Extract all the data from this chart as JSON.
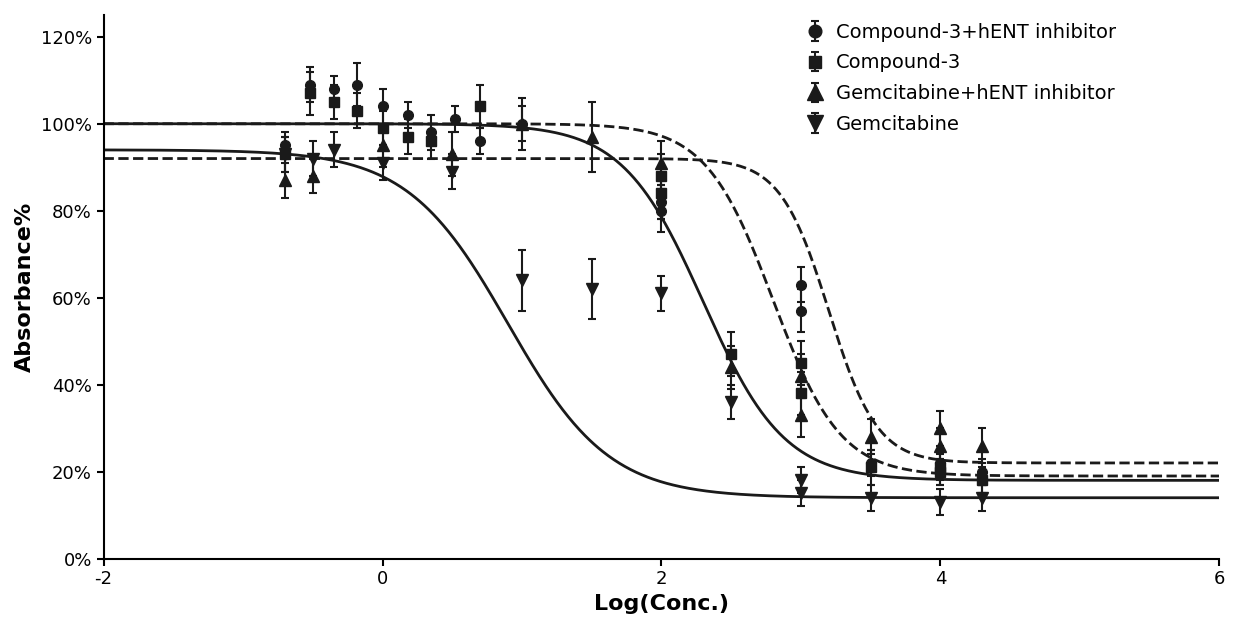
{
  "title": "",
  "xlabel": "Log(Conc.)",
  "ylabel": "Absorbance%",
  "xlim": [
    -2,
    6
  ],
  "ylim": [
    0,
    125
  ],
  "yticks": [
    0,
    20,
    40,
    60,
    80,
    100,
    120
  ],
  "xticks": [
    -2,
    0,
    2,
    4,
    6
  ],
  "background_color": "#ffffff",
  "series": [
    {
      "label": "Compound-3+hENT inhibitor",
      "marker": "o",
      "marker_size": 7,
      "color": "#1a1a1a",
      "linestyle": "--",
      "top": 100,
      "bottom": 19,
      "ic50": 2.8,
      "hill": 1.8,
      "data_x": [
        -0.7,
        -0.52,
        -0.35,
        -0.18,
        0.0,
        0.18,
        0.35,
        0.52,
        0.7,
        1.0,
        2.0,
        2.0,
        3.0,
        3.0,
        3.5,
        4.0,
        4.0,
        4.3
      ],
      "data_y": [
        95,
        109,
        108,
        109,
        104,
        102,
        98,
        101,
        96,
        100,
        80,
        82,
        57,
        63,
        22,
        20,
        22,
        20
      ],
      "data_yerr": [
        3,
        4,
        3,
        5,
        4,
        3,
        4,
        3,
        3,
        4,
        5,
        4,
        5,
        4,
        3,
        3,
        3,
        3
      ]
    },
    {
      "label": "Compound-3",
      "marker": "s",
      "marker_size": 7,
      "color": "#1a1a1a",
      "linestyle": "-",
      "top": 100,
      "bottom": 18,
      "ic50": 2.3,
      "hill": 1.5,
      "data_x": [
        -0.7,
        -0.52,
        -0.35,
        -0.18,
        0.0,
        0.18,
        0.35,
        0.7,
        2.0,
        2.0,
        2.5,
        3.0,
        3.0,
        3.5,
        4.0,
        4.0,
        4.3
      ],
      "data_y": [
        93,
        107,
        105,
        103,
        99,
        97,
        96,
        104,
        84,
        88,
        47,
        45,
        38,
        21,
        20,
        21,
        18
      ],
      "data_yerr": [
        4,
        5,
        4,
        4,
        4,
        4,
        4,
        5,
        6,
        5,
        5,
        5,
        5,
        4,
        3,
        3,
        3
      ]
    },
    {
      "label": "Gemcitabine+hENT inhibitor",
      "marker": "^",
      "marker_size": 9,
      "color": "#1a1a1a",
      "linestyle": "--",
      "top": 92,
      "bottom": 22,
      "ic50": 3.2,
      "hill": 2.5,
      "data_x": [
        -0.7,
        -0.5,
        0.0,
        0.5,
        1.0,
        1.5,
        2.0,
        2.5,
        3.0,
        3.0,
        3.5,
        4.0,
        4.0,
        4.3
      ],
      "data_y": [
        87,
        88,
        95,
        93,
        100,
        97,
        91,
        44,
        33,
        42,
        28,
        26,
        30,
        26
      ],
      "data_yerr": [
        4,
        4,
        5,
        5,
        6,
        8,
        5,
        5,
        5,
        5,
        4,
        4,
        4,
        4
      ]
    },
    {
      "label": "Gemcitabine",
      "marker": "v",
      "marker_size": 9,
      "color": "#1a1a1a",
      "linestyle": "-",
      "top": 94,
      "bottom": 14,
      "ic50": 0.9,
      "hill": 1.2,
      "data_x": [
        -0.7,
        -0.5,
        -0.35,
        0.0,
        0.5,
        1.0,
        1.5,
        2.0,
        2.5,
        3.0,
        3.0,
        3.5,
        4.0,
        4.3
      ],
      "data_y": [
        93,
        92,
        94,
        91,
        89,
        64,
        62,
        61,
        36,
        18,
        15,
        14,
        13,
        14
      ],
      "data_yerr": [
        4,
        4,
        4,
        4,
        4,
        7,
        7,
        4,
        4,
        3,
        3,
        3,
        3,
        3
      ]
    }
  ],
  "legend_fontsize": 14,
  "axis_label_fontsize": 16,
  "tick_fontsize": 13,
  "line_width": 2.0
}
